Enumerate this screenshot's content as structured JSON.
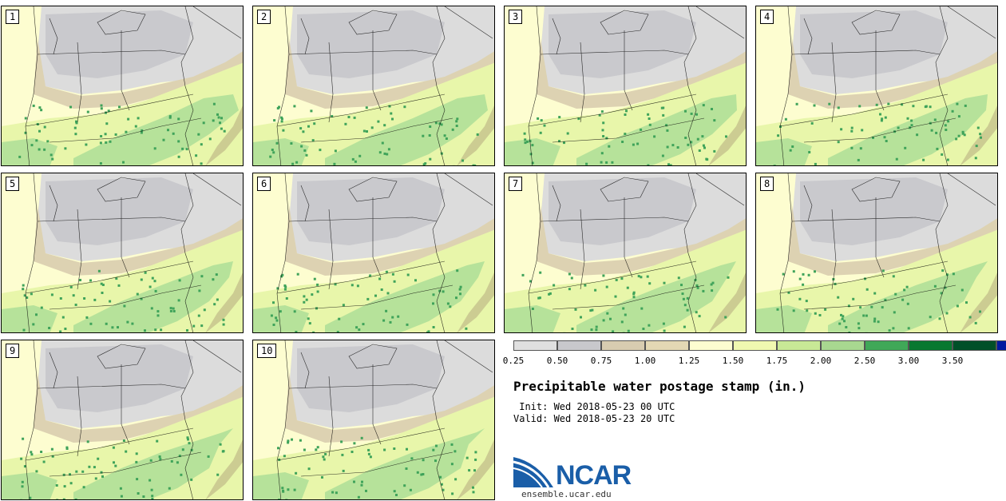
{
  "stamps": [
    {
      "label": "1"
    },
    {
      "label": "2"
    },
    {
      "label": "3"
    },
    {
      "label": "4"
    },
    {
      "label": "5"
    },
    {
      "label": "6"
    },
    {
      "label": "7"
    },
    {
      "label": "8"
    },
    {
      "label": "9"
    },
    {
      "label": "10"
    }
  ],
  "colorbar": {
    "ticks": [
      "0.25",
      "0.50",
      "0.75",
      "1.00",
      "1.25",
      "1.50",
      "1.75",
      "2.00",
      "2.50",
      "3.00",
      "3.50"
    ],
    "colors": [
      "#e0e0e0",
      "#c8c8cc",
      "#d8ccb0",
      "#e4d8b4",
      "#fdfdd0",
      "#f0f8b0",
      "#c8e896",
      "#a8d890",
      "#40a858",
      "#087830",
      "#005028",
      "#0018a0"
    ]
  },
  "title": "Precipitable water postage stamp (in.)",
  "init_line": " Init: Wed 2018-05-23 00 UTC",
  "valid_line": "Valid: Wed 2018-05-23 20 UTC",
  "logo": {
    "name": "NCAR",
    "url": "ensemble.ucar.edu"
  },
  "map_colors": {
    "base": "#fdfdd0",
    "gray": "#c9c9cd",
    "light_gray": "#dcdcdc",
    "tan": "#ddd2b2",
    "light_green": "#e8f6aa",
    "green": "#b6e29a",
    "dark_green": "#3fa35a",
    "border": "#000000"
  }
}
